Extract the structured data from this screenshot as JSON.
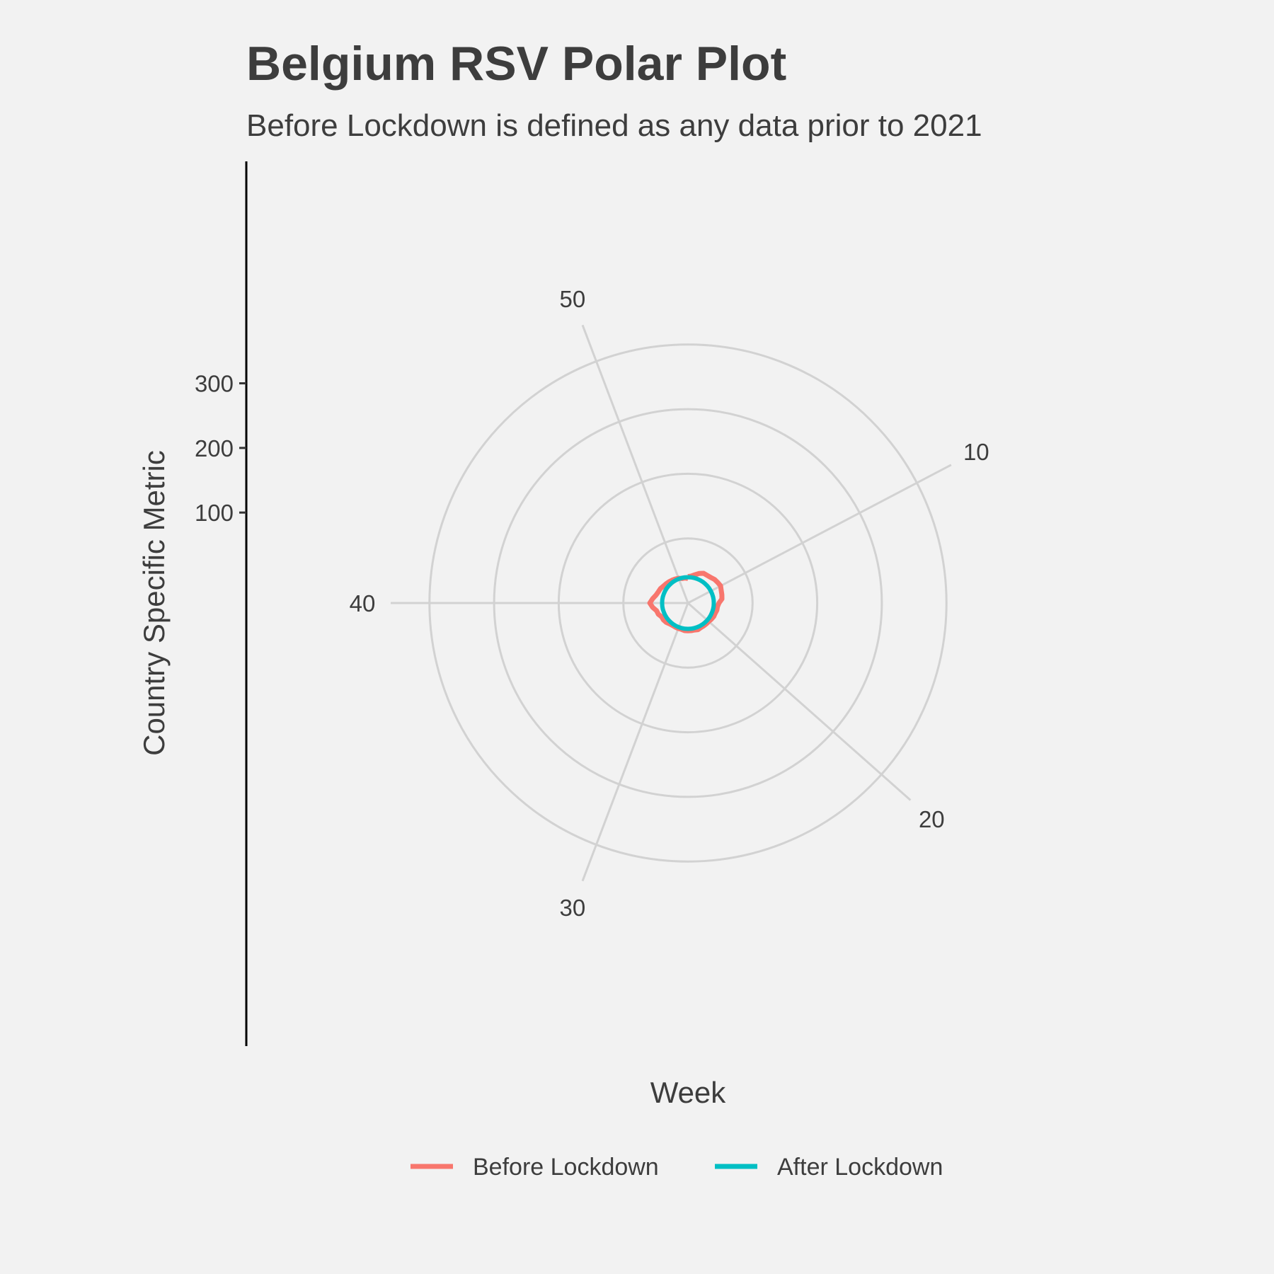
{
  "chart_data": {
    "type": "line",
    "coord": "polar",
    "title": "Belgium RSV Polar Plot",
    "subtitle": "Before Lockdown is defined as any data prior to 2021",
    "xlabel": "Week",
    "ylabel": "Country Specific Metric",
    "x_ticks": [
      10,
      20,
      30,
      40,
      50
    ],
    "x_range": [
      1,
      53
    ],
    "y_ticks": [
      100,
      200,
      300
    ],
    "ylim": [
      -40,
      420
    ],
    "radial_gridlines": [
      -40,
      60,
      160,
      260,
      360
    ],
    "legend_position": "bottom",
    "colors": {
      "before": "#f8766d",
      "after": "#00bfc4",
      "grid": "#d2d2d2",
      "background": "#f2f2f2"
    },
    "series": [
      {
        "name": "Before Lockdown",
        "color": "#f8766d",
        "x": [
          1,
          2,
          3,
          4,
          5,
          6,
          7,
          8,
          9,
          10,
          11,
          12,
          13,
          14,
          15,
          16,
          17,
          18,
          19,
          20,
          21,
          22,
          23,
          24,
          25,
          26,
          27,
          28,
          29,
          30,
          31,
          32,
          33,
          33.5,
          34,
          35,
          36,
          37,
          38,
          39,
          40,
          41,
          42,
          43,
          44,
          45,
          46,
          47,
          48,
          49,
          50,
          51,
          52,
          53
        ],
        "values": [
          1,
          2,
          5,
          9,
          12,
          12,
          13,
          15,
          16,
          17,
          15,
          14,
          13,
          8,
          6,
          6,
          5,
          5,
          4,
          3,
          3,
          3,
          3,
          4,
          3,
          3,
          3,
          3,
          2,
          2,
          2,
          2,
          3,
          4,
          5,
          6,
          6,
          9,
          10,
          15,
          19,
          15,
          11,
          9,
          8,
          6,
          5,
          4,
          3,
          2,
          1,
          -1,
          -1,
          -2
        ]
      },
      {
        "name": "After Lockdown",
        "color": "#00bfc4",
        "x": [
          1,
          2,
          3,
          4,
          5,
          6,
          7,
          8,
          9,
          10,
          11,
          12,
          13,
          14,
          15,
          16,
          17,
          18,
          19,
          20,
          21,
          22,
          23,
          24,
          25,
          26,
          27,
          28,
          29,
          30,
          31,
          32,
          33,
          34,
          35,
          36,
          37,
          38,
          39,
          40,
          41,
          42,
          43,
          44,
          45,
          46,
          47,
          48,
          49,
          50,
          51,
          52,
          53
        ],
        "values": [
          0,
          0,
          0,
          0,
          0,
          0,
          0,
          0,
          0,
          0,
          0,
          0,
          0,
          0,
          0,
          0,
          0,
          0,
          0,
          0,
          0,
          0,
          0,
          0,
          0,
          0,
          0,
          0,
          0,
          0,
          0,
          0,
          0,
          0,
          0,
          0,
          0,
          0,
          0,
          0,
          0,
          0,
          0,
          0,
          0,
          0,
          0,
          0,
          0,
          0,
          0,
          0,
          0
        ]
      }
    ]
  }
}
